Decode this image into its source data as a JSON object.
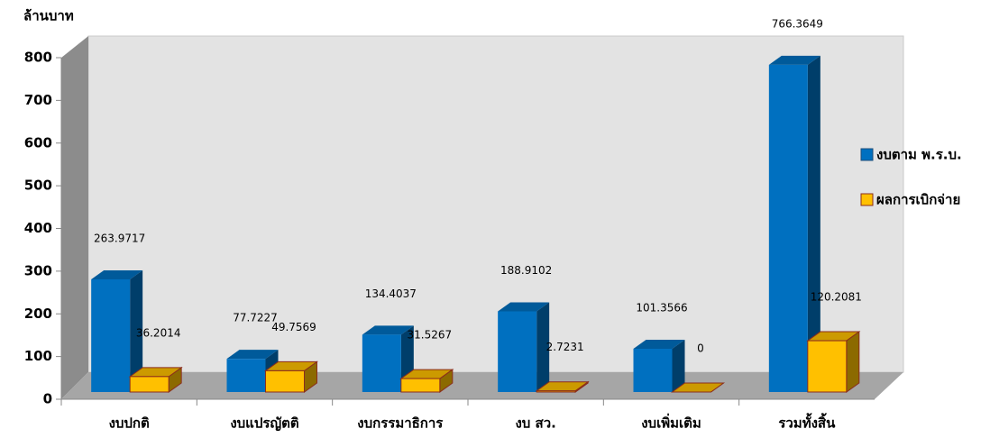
{
  "chart_data": {
    "type": "bar3d",
    "y_label": "ล้านบาท",
    "categories": [
      "งบปกติ",
      "งบแปรญัตติ",
      "งบกรรมาธิการ",
      "งบ สว.",
      "งบเพิ่มเติม",
      "รวมทั้งสิ้น"
    ],
    "series": [
      {
        "name": "งบตาม พ.ร.บ.",
        "color": "#0070c0",
        "values": [
          263.9717,
          77.7227,
          134.4037,
          188.9102,
          101.3566,
          766.3649
        ]
      },
      {
        "name": "ผลการเบิกจ่าย",
        "color": "#ffc000",
        "values": [
          36.2014,
          49.7569,
          31.5267,
          2.7231,
          0,
          120.2081
        ]
      }
    ],
    "ylim": [
      0,
      800
    ],
    "yticks": [
      0,
      100,
      200,
      300,
      400,
      500,
      600,
      700,
      800
    ],
    "legend": "right"
  }
}
